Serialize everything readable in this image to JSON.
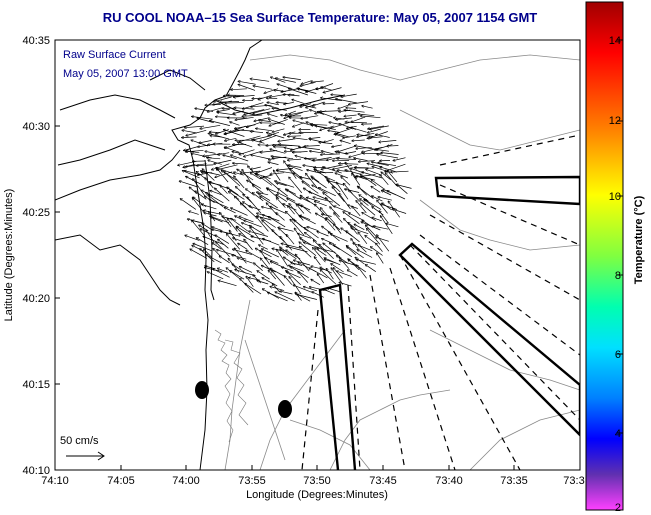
{
  "title": "RU COOL  NOAA–15  Sea Surface Temperature:  May 05, 2007 1154 GMT",
  "annotation": {
    "line1": "Raw Surface Current",
    "line2": "May 05, 2007 13:00 GMT"
  },
  "scale": {
    "label": "50 cm/s"
  },
  "axes": {
    "xlabel": "Longitude (Degrees:Minutes)",
    "ylabel": "Latitude (Degrees:Minutes)",
    "xticks": [
      "74:10",
      "74:05",
      "74:00",
      "73:55",
      "73:50",
      "73:45",
      "73:40",
      "73:35",
      "73:3"
    ],
    "yticks": [
      "40:35",
      "40:30",
      "40:25",
      "40:20",
      "40:15",
      "40:10"
    ]
  },
  "colorbar": {
    "label": "Temperature (°C)",
    "ticks": [
      "14",
      "12",
      "10",
      "8",
      "6",
      "4",
      "2"
    ],
    "colors": [
      "#b00000",
      "#ff0000",
      "#ff8000",
      "#ffff00",
      "#80ff00",
      "#00ff80",
      "#00ffff",
      "#0080ff",
      "#0000ff",
      "#6020a0",
      "#ff40ff"
    ]
  }
}
